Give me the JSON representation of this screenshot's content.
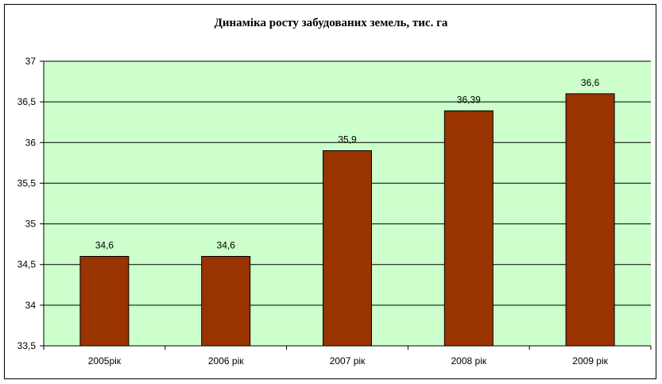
{
  "chart_data": {
    "type": "bar",
    "title": "Динаміка росту забудованих земель, тис. га",
    "categories": [
      "2005рік",
      "2006 рік",
      "2007 рік",
      "2008 рік",
      "2009 рік"
    ],
    "values": [
      34.6,
      34.6,
      35.9,
      36.39,
      36.6
    ],
    "data_labels": [
      "34,6",
      "34,6",
      "35,9",
      "36,39",
      "36,6"
    ],
    "ylim": [
      33.5,
      37
    ],
    "yticks": [
      "33,5",
      "34",
      "34,5",
      "35",
      "35,5",
      "36",
      "36,5",
      "37"
    ],
    "grid": true,
    "legend": "none",
    "colors": {
      "bar": "#993300",
      "plot_background": "#CCFFCC",
      "gridline": "#000000"
    }
  }
}
